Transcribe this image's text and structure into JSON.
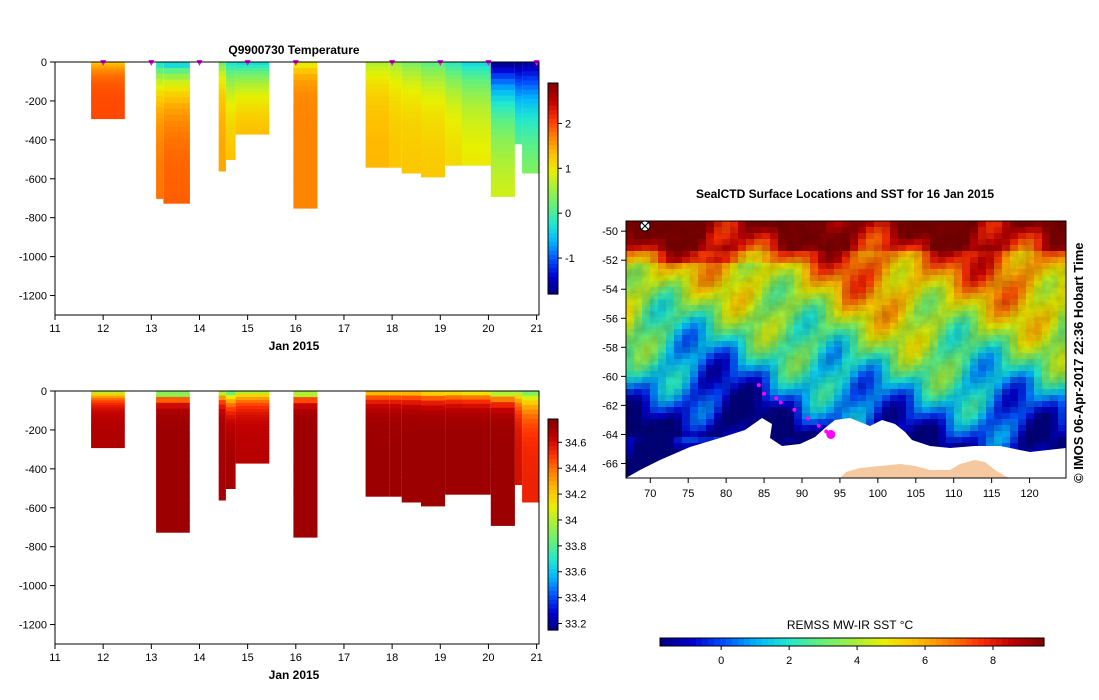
{
  "colors": {
    "jet": [
      "#00007f",
      "#0000d0",
      "#0050ff",
      "#00b4ff",
      "#20e8d0",
      "#60f080",
      "#a0f040",
      "#e8f000",
      "#ffc000",
      "#ff8000",
      "#ff3000",
      "#c00000",
      "#800000"
    ],
    "land": "#f5c8a0",
    "ice": "#ffffff",
    "marker": "#ff00ff"
  },
  "chart_data": [
    {
      "type": "heatmap",
      "title": "Q9900730  Temperature",
      "xlabel": "Jan 2015",
      "ylabel": "",
      "x_ticks": [
        "11",
        "12",
        "13",
        "14",
        "15",
        "16",
        "17",
        "18",
        "19",
        "20",
        "21"
      ],
      "y_ticks": [
        "0",
        "-200",
        "-400",
        "-600",
        "-800",
        "-1000",
        "-1200"
      ],
      "xlim": [
        11,
        21.05
      ],
      "ylim": [
        -1300,
        0
      ],
      "colorbar": {
        "ticks": [
          "2",
          "1",
          "0",
          "-1"
        ],
        "tick_values": [
          2,
          1,
          0,
          -1
        ],
        "range": [
          -1.8,
          2.9
        ]
      },
      "marker_days": [
        12,
        13,
        14,
        15,
        16,
        18,
        19,
        20,
        21
      ],
      "profiles": [
        {
          "x0": 11.75,
          "x1": 12.45,
          "depth": 290,
          "surface": 1.2,
          "deep": 2.0,
          "mix": 50
        },
        {
          "x0": 13.1,
          "x1": 13.25,
          "depth": 700,
          "surface": -0.4,
          "deep": 1.8,
          "mix": 140
        },
        {
          "x0": 13.25,
          "x1": 13.8,
          "depth": 725,
          "surface": -0.6,
          "deep": 1.9,
          "mix": 130
        },
        {
          "x0": 14.4,
          "x1": 14.55,
          "depth": 560,
          "surface": 0.2,
          "deep": 1.5,
          "mix": 110
        },
        {
          "x0": 14.55,
          "x1": 14.75,
          "depth": 500,
          "surface": -0.3,
          "deep": 1.4,
          "mix": 170
        },
        {
          "x0": 14.75,
          "x1": 15.45,
          "depth": 370,
          "surface": -0.4,
          "deep": 1.5,
          "mix": 150
        },
        {
          "x0": 15.95,
          "x1": 16.45,
          "depth": 750,
          "surface": 0.8,
          "deep": 1.7,
          "mix": 60
        },
        {
          "x0": 17.45,
          "x1": 17.95,
          "depth": 540,
          "surface": 0.6,
          "deep": 1.4,
          "mix": 130
        },
        {
          "x0": 17.95,
          "x1": 18.2,
          "depth": 540,
          "surface": 0.5,
          "deep": 1.3,
          "mix": 140
        },
        {
          "x0": 18.2,
          "x1": 18.6,
          "depth": 570,
          "surface": 0.3,
          "deep": 1.3,
          "mix": 150
        },
        {
          "x0": 18.6,
          "x1": 19.1,
          "depth": 590,
          "surface": 0.1,
          "deep": 1.3,
          "mix": 170
        },
        {
          "x0": 19.1,
          "x1": 19.45,
          "depth": 530,
          "surface": -0.2,
          "deep": 1.2,
          "mix": 180
        },
        {
          "x0": 19.45,
          "x1": 20.05,
          "depth": 530,
          "surface": -0.4,
          "deep": 1.1,
          "mix": 200
        },
        {
          "x0": 20.05,
          "x1": 20.55,
          "depth": 690,
          "surface": -1.8,
          "deep": 1.0,
          "mix": 260
        },
        {
          "x0": 20.55,
          "x1": 20.7,
          "depth": 420,
          "surface": -1.8,
          "deep": 0.6,
          "mix": 280
        },
        {
          "x0": 20.7,
          "x1": 21.05,
          "depth": 570,
          "surface": -1.7,
          "deep": 0.8,
          "mix": 330
        }
      ]
    },
    {
      "type": "heatmap",
      "title": "",
      "xlabel": "Jan 2015",
      "ylabel": "",
      "x_ticks": [
        "11",
        "12",
        "13",
        "14",
        "15",
        "16",
        "17",
        "18",
        "19",
        "20",
        "21"
      ],
      "y_ticks": [
        "0",
        "-200",
        "-400",
        "-600",
        "-800",
        "-1000",
        "-1200"
      ],
      "xlim": [
        11,
        21.05
      ],
      "ylim": [
        -1300,
        0
      ],
      "colorbar": {
        "ticks": [
          "34.6",
          "34.4",
          "34.2",
          "34",
          "33.8",
          "33.6",
          "33.4",
          "33.2"
        ],
        "tick_values": [
          34.6,
          34.4,
          34.2,
          34.0,
          33.8,
          33.6,
          33.4,
          33.2
        ],
        "range": [
          33.15,
          34.78
        ]
      },
      "profiles": [
        {
          "x0": 11.75,
          "x1": 12.45,
          "depth": 290,
          "surface": 33.9,
          "deep": 34.68,
          "mix": 40
        },
        {
          "x0": 13.1,
          "x1": 13.8,
          "depth": 725,
          "surface": 33.4,
          "deep": 34.72,
          "mix": 30
        },
        {
          "x0": 14.4,
          "x1": 14.55,
          "depth": 560,
          "surface": 33.8,
          "deep": 34.7,
          "mix": 40
        },
        {
          "x0": 14.55,
          "x1": 14.75,
          "depth": 500,
          "surface": 33.7,
          "deep": 34.7,
          "mix": 60
        },
        {
          "x0": 14.75,
          "x1": 15.45,
          "depth": 370,
          "surface": 33.9,
          "deep": 34.66,
          "mix": 50
        },
        {
          "x0": 15.95,
          "x1": 16.45,
          "depth": 750,
          "surface": 33.5,
          "deep": 34.72,
          "mix": 30
        },
        {
          "x0": 17.45,
          "x1": 17.95,
          "depth": 540,
          "surface": 34.1,
          "deep": 34.72,
          "mix": 40
        },
        {
          "x0": 17.95,
          "x1": 18.2,
          "depth": 540,
          "surface": 34.1,
          "deep": 34.72,
          "mix": 40
        },
        {
          "x0": 18.2,
          "x1": 18.6,
          "depth": 570,
          "surface": 34.1,
          "deep": 34.72,
          "mix": 40
        },
        {
          "x0": 18.6,
          "x1": 19.1,
          "depth": 590,
          "surface": 34.0,
          "deep": 34.72,
          "mix": 40
        },
        {
          "x0": 19.1,
          "x1": 19.45,
          "depth": 530,
          "surface": 34.0,
          "deep": 34.72,
          "mix": 40
        },
        {
          "x0": 19.45,
          "x1": 20.05,
          "depth": 530,
          "surface": 33.95,
          "deep": 34.72,
          "mix": 40
        },
        {
          "x0": 20.05,
          "x1": 20.55,
          "depth": 690,
          "surface": 33.7,
          "deep": 34.72,
          "mix": 40
        },
        {
          "x0": 20.55,
          "x1": 20.7,
          "depth": 480,
          "surface": 33.9,
          "deep": 34.6,
          "mix": 60
        },
        {
          "x0": 20.7,
          "x1": 21.05,
          "depth": 570,
          "surface": 33.8,
          "deep": 34.55,
          "mix": 80
        }
      ]
    },
    {
      "type": "heatmap",
      "title": "SealCTD Surface Locations and SST for 16 Jan 2015",
      "xlabel": "",
      "ylabel": "",
      "x_ticks": [
        "70",
        "75",
        "80",
        "85",
        "90",
        "95",
        "100",
        "105",
        "110",
        "115",
        "120"
      ],
      "x_tick_values": [
        70,
        75,
        80,
        85,
        90,
        95,
        100,
        105,
        110,
        115,
        120
      ],
      "y_ticks": [
        "-50",
        "-52",
        "-54",
        "-56",
        "-58",
        "-60",
        "-62",
        "-64",
        "-66"
      ],
      "y_tick_values": [
        -50,
        -52,
        -54,
        -56,
        -58,
        -60,
        -62,
        -64,
        -66
      ],
      "xlim": [
        66.8,
        124.8
      ],
      "ylim": [
        -67.0,
        -49.3
      ],
      "side_label": "© IMOS 06-Apr-2017 22:36 Hobart Time",
      "colorbar": {
        "label": "REMSS MW-IR SST °C",
        "ticks": [
          "0",
          "2",
          "4",
          "6",
          "8"
        ],
        "tick_values": [
          0,
          2,
          4,
          6,
          8
        ],
        "range": [
          -1.8,
          9.5
        ]
      },
      "locations": [
        {
          "lon": 84.3,
          "lat": -60.6
        },
        {
          "lon": 85.0,
          "lat": -61.2
        },
        {
          "lon": 86.6,
          "lat": -61.5
        },
        {
          "lon": 87.2,
          "lat": -61.8
        },
        {
          "lon": 89.0,
          "lat": -62.3
        },
        {
          "lon": 90.8,
          "lat": -62.9
        },
        {
          "lon": 92.2,
          "lat": -63.4
        },
        {
          "lon": 93.2,
          "lat": -63.8
        }
      ],
      "current_location": {
        "lon": 93.8,
        "lat": -64.0
      }
    }
  ]
}
